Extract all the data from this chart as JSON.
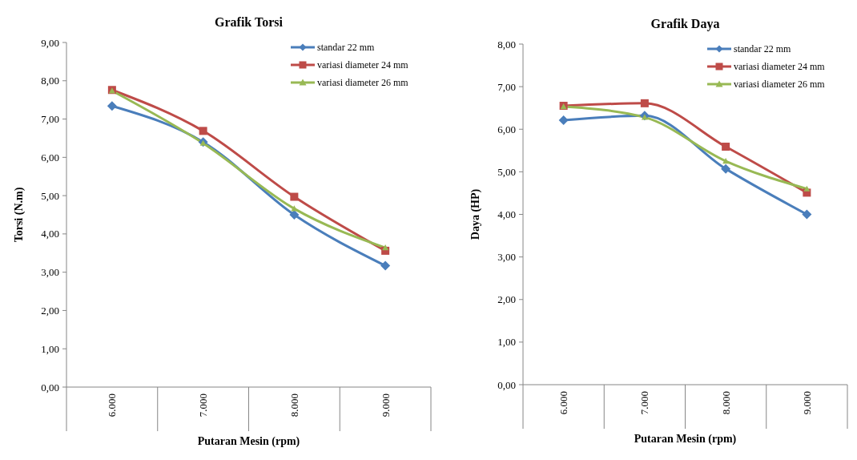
{
  "chart_data": [
    {
      "type": "line",
      "title": "Grafik  Torsi",
      "xlabel": "Putaran Mesin (rpm)",
      "ylabel": "Torsi (N.m)",
      "categories": [
        "6.000",
        "7.000",
        "8.000",
        "9.000"
      ],
      "series": [
        {
          "name": "standar 22 mm",
          "color": "#4a7ebb",
          "marker": "diamond",
          "values": [
            7.34,
            6.4,
            4.5,
            3.17
          ]
        },
        {
          "name": "variasi diameter 24 mm",
          "color": "#be4b48",
          "marker": "square",
          "values": [
            7.76,
            6.69,
            4.97,
            3.56
          ]
        },
        {
          "name": "variasi diameter 26 mm",
          "color": "#98b954",
          "marker": "triangle",
          "values": [
            7.74,
            6.37,
            4.66,
            3.64
          ]
        }
      ],
      "ylim": [
        0,
        9
      ],
      "yticks": [
        {
          "value": 0,
          "label": "0,00"
        },
        {
          "value": 1,
          "label": "1,00"
        },
        {
          "value": 2,
          "label": "2,00"
        },
        {
          "value": 3,
          "label": "3,00"
        },
        {
          "value": 4,
          "label": "4,00"
        },
        {
          "value": 5,
          "label": "5,00"
        },
        {
          "value": 6,
          "label": "6,00"
        },
        {
          "value": 7,
          "label": "7,00"
        },
        {
          "value": 8,
          "label": "8,00"
        },
        {
          "value": 9,
          "label": "9,00"
        }
      ],
      "grid": false,
      "legend": "top right"
    },
    {
      "type": "line",
      "title": "Grafik Daya",
      "xlabel": "Putaran Mesin (rpm)",
      "ylabel": "Daya (HP)",
      "categories": [
        "6.000",
        "7.000",
        "8.000",
        "9.000"
      ],
      "series": [
        {
          "name": "standar 22 mm",
          "color": "#4a7ebb",
          "marker": "diamond",
          "values": [
            6.21,
            6.32,
            5.07,
            4.0
          ]
        },
        {
          "name": "variasi diameter 24 mm",
          "color": "#be4b48",
          "marker": "square",
          "values": [
            6.55,
            6.61,
            5.59,
            4.51
          ]
        },
        {
          "name": "variasi diameter 26 mm",
          "color": "#98b954",
          "marker": "triangle",
          "values": [
            6.53,
            6.28,
            5.25,
            4.6
          ]
        }
      ],
      "ylim": [
        0,
        8
      ],
      "yticks": [
        {
          "value": 0,
          "label": "0,00"
        },
        {
          "value": 1,
          "label": "1,00"
        },
        {
          "value": 2,
          "label": "2,00"
        },
        {
          "value": 3,
          "label": "3,00"
        },
        {
          "value": 4,
          "label": "4,00"
        },
        {
          "value": 5,
          "label": "5,00"
        },
        {
          "value": 6,
          "label": "6,00"
        },
        {
          "value": 7,
          "label": "7,00"
        },
        {
          "value": 8,
          "label": "8,00"
        }
      ],
      "grid": false,
      "legend": "top right"
    }
  ]
}
